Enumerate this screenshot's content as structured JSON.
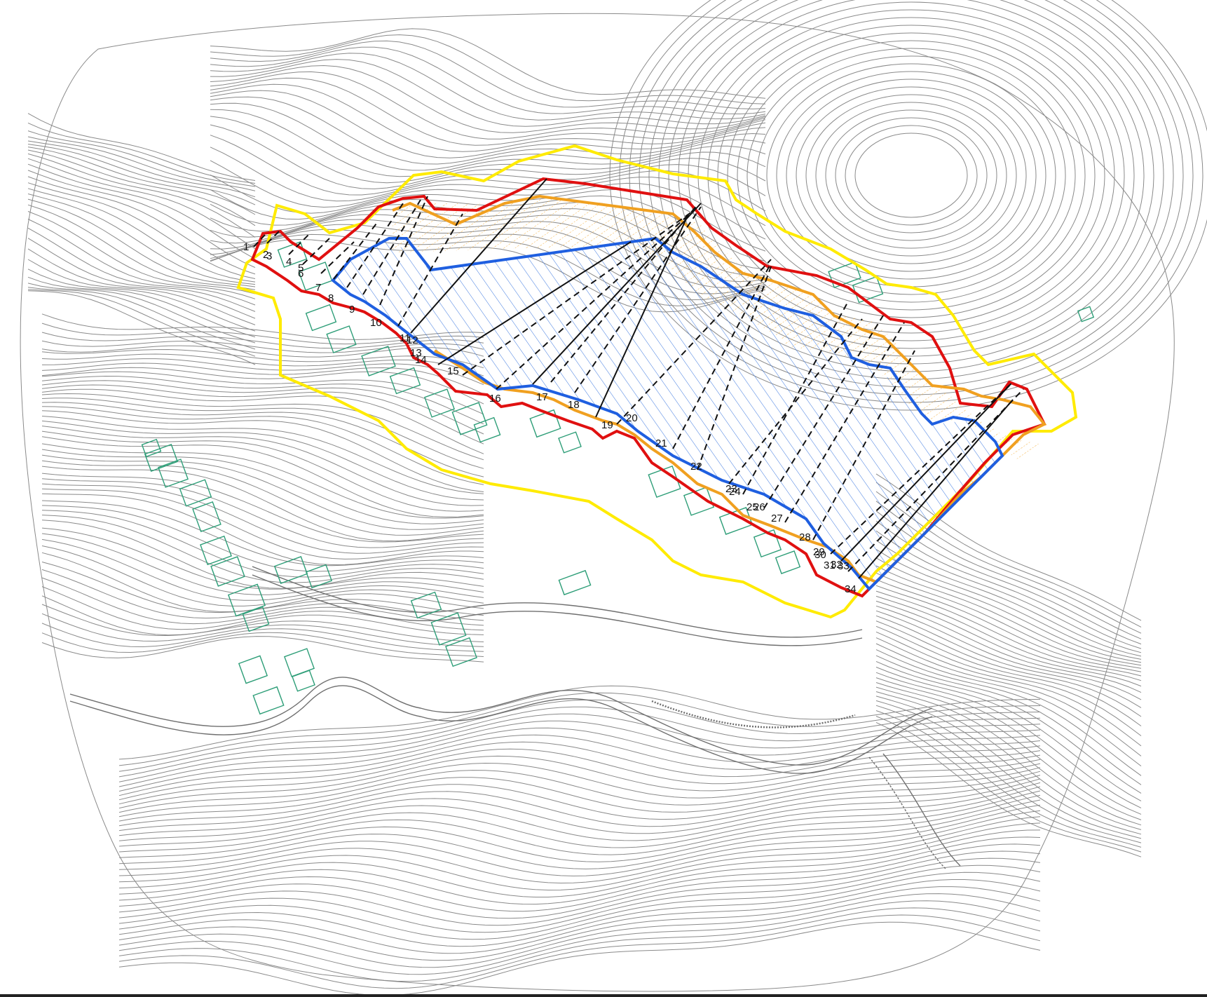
{
  "map": {
    "colors": {
      "background": "#ffffff",
      "contour": "#8a8a8a",
      "building": "#2e9e78",
      "yellow_boundary": "#ffeb00",
      "red_boundary": "#e01010",
      "orange_boundary": "#f0a020",
      "blue_boundary": "#1f5fe0",
      "blue_hatch": "#3c78e0",
      "orange_hatch": "#f5b040",
      "section_line": "#111111"
    },
    "section_labels": [
      {
        "label": "1"
      },
      {
        "label": "2"
      },
      {
        "label": "3"
      },
      {
        "label": "4"
      },
      {
        "label": "5"
      },
      {
        "label": "6"
      },
      {
        "label": "7"
      },
      {
        "label": "8"
      },
      {
        "label": "9"
      },
      {
        "label": "10"
      },
      {
        "label": "11"
      },
      {
        "label": "12"
      },
      {
        "label": "13"
      },
      {
        "label": "14"
      },
      {
        "label": "15"
      },
      {
        "label": "16"
      },
      {
        "label": "17"
      },
      {
        "label": "18"
      },
      {
        "label": "19"
      },
      {
        "label": "20"
      },
      {
        "label": "21"
      },
      {
        "label": "22"
      },
      {
        "label": "23"
      },
      {
        "label": "24"
      },
      {
        "label": "25"
      },
      {
        "label": "26"
      },
      {
        "label": "27"
      },
      {
        "label": "28"
      },
      {
        "label": "29"
      },
      {
        "label": "30"
      },
      {
        "label": "31"
      },
      {
        "label": "32"
      },
      {
        "label": "33"
      },
      {
        "label": "34"
      }
    ]
  }
}
